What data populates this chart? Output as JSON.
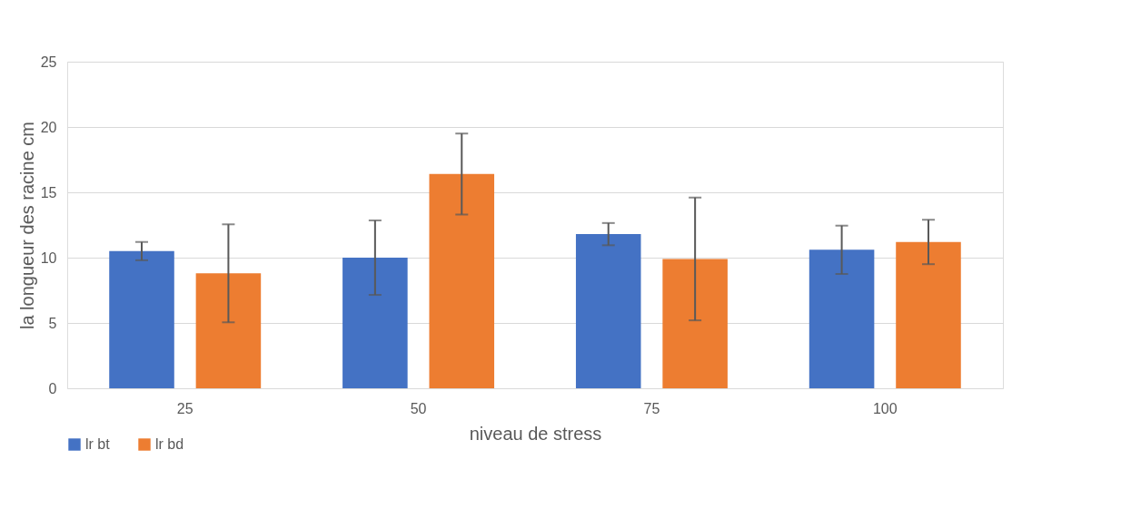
{
  "chart_data": {
    "type": "bar",
    "xlabel": "niveau de stress",
    "ylabel": "la longueur des racine cm",
    "categories": [
      "25",
      "50",
      "75",
      "100"
    ],
    "series": [
      {
        "name": "lr bt",
        "color": "#4472c4",
        "values": [
          10.5,
          10.0,
          11.8,
          10.6
        ],
        "errors": [
          0.7,
          2.85,
          0.85,
          1.85
        ]
      },
      {
        "name": "lr bd",
        "color": "#ed7d31",
        "values": [
          8.8,
          16.4,
          9.9,
          11.2
        ],
        "errors": [
          3.75,
          3.1,
          4.7,
          1.7
        ]
      }
    ],
    "ylim": [
      0,
      25
    ],
    "yticks": [
      0,
      5,
      10,
      15,
      20,
      25
    ],
    "grid": "y",
    "legend": "bottom"
  }
}
